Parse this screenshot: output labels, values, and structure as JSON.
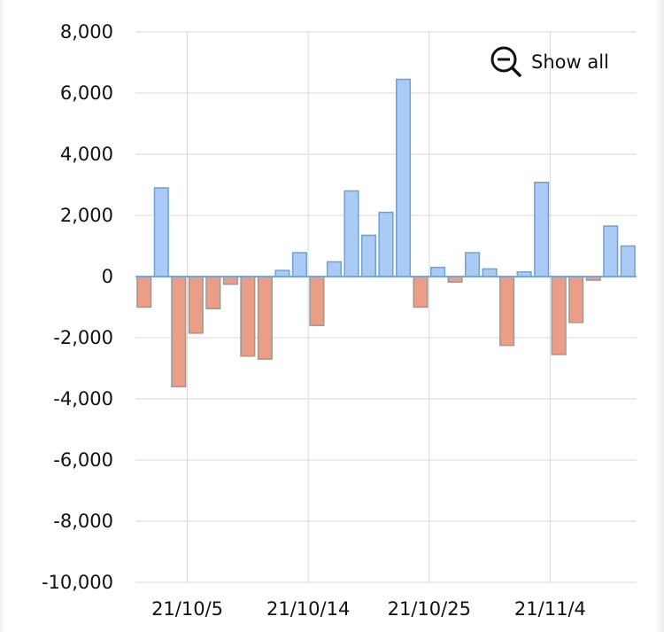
{
  "controls": {
    "show_all_label": "Show all",
    "show_all_icon": "zoom-out-icon"
  },
  "colors": {
    "positive_fill": "#a9cbf6",
    "positive_stroke": "#6fa0d6",
    "negative_fill": "#ea9e86",
    "negative_stroke": "#9a9a9a",
    "grid": "#d9d9d9",
    "zero_line": "#7aa6d6"
  },
  "chart_data": {
    "type": "bar",
    "title": "",
    "xlabel": "",
    "ylabel": "",
    "ylim": [
      -10000,
      8000
    ],
    "yticks": [
      8000,
      6000,
      4000,
      2000,
      0,
      -2000,
      -4000,
      -6000,
      -8000,
      -10000
    ],
    "ytick_labels": [
      "8,000",
      "6,000",
      "4,000",
      "2,000",
      "0",
      "-2,000",
      "-4,000",
      "-6,000",
      "-8,000",
      "-10,000"
    ],
    "xtick_labels": [
      {
        "label": "21/10/5",
        "after_bar_index": 2
      },
      {
        "label": "21/10/14",
        "after_bar_index": 9
      },
      {
        "label": "21/10/25",
        "after_bar_index": 16
      },
      {
        "label": "21/11/4",
        "after_bar_index": 23
      }
    ],
    "grid": true,
    "values": [
      -1000,
      2900,
      -3600,
      -1850,
      -1050,
      -250,
      -2600,
      -2700,
      200,
      780,
      -1600,
      480,
      2800,
      1350,
      2100,
      6450,
      -1000,
      300,
      -180,
      780,
      250,
      -2250,
      150,
      3080,
      -2550,
      -1500,
      -120,
      1650,
      1000
    ]
  }
}
